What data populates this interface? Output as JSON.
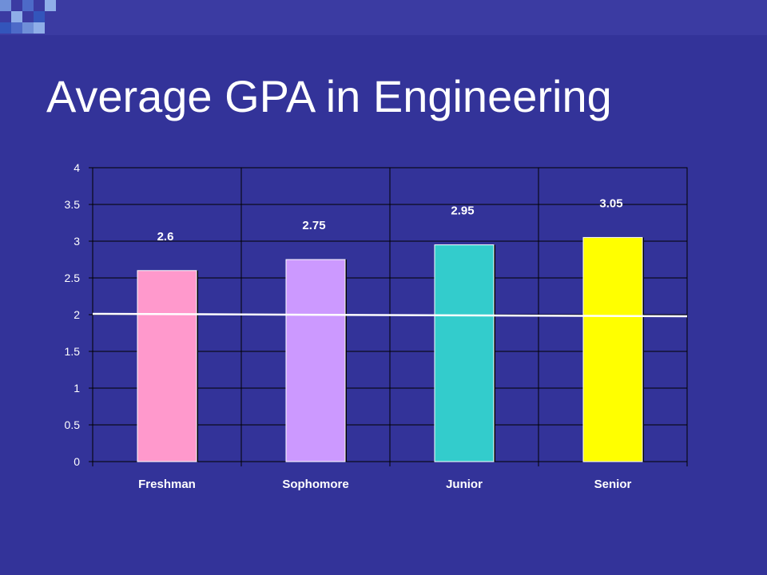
{
  "slide": {
    "title": "Average GPA in Engineering"
  },
  "chart_data": {
    "type": "bar",
    "title": "",
    "xlabel": "",
    "ylabel": "",
    "categories": [
      "Freshman",
      "Sophomore",
      "Junior",
      "Senior"
    ],
    "values": [
      2.6,
      2.75,
      2.95,
      3.05
    ],
    "data_labels": [
      "2.6",
      "2.75",
      "2.95",
      "3.05"
    ],
    "bar_colors": [
      "#ff99cc",
      "#cc99ff",
      "#33cccc",
      "#ffff00"
    ],
    "ylim": [
      0,
      4
    ],
    "yticks": [
      "0",
      "0.5",
      "1",
      "1.5",
      "2",
      "2.5",
      "3",
      "3.5",
      "4"
    ],
    "reference_line": 2,
    "grid": true,
    "legend": "none"
  }
}
